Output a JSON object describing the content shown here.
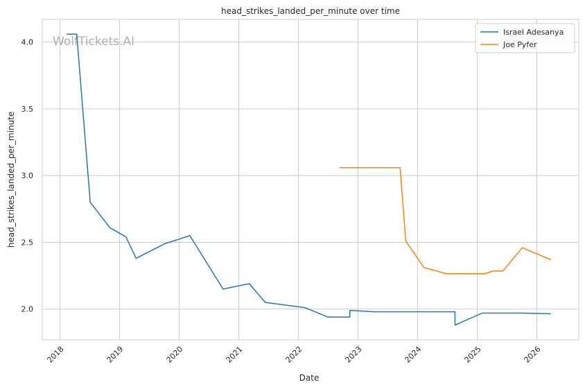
{
  "chart_data": {
    "type": "line",
    "title": "head_strikes_landed_per_minute over time",
    "xlabel": "Date",
    "ylabel": "head_strikes_landed_per_minute",
    "watermark": "WolfTickets.AI",
    "x_ticks": [
      "2018",
      "2019",
      "2020",
      "2021",
      "2022",
      "2023",
      "2024",
      "2025",
      "2026"
    ],
    "y_ticks": [
      "2.0",
      "2.5",
      "3.0",
      "3.5",
      "4.0"
    ],
    "xlim": [
      "2017-09-15",
      "2026-09-15"
    ],
    "ylim": [
      1.77,
      4.17
    ],
    "grid": true,
    "legend_position": "top-right",
    "series": [
      {
        "name": "Israel Adesanya",
        "color": "#1f77b4",
        "points": [
          [
            "2018-02-10",
            4.06
          ],
          [
            "2018-04-14",
            4.06
          ],
          [
            "2018-07-06",
            2.8
          ],
          [
            "2018-11-03",
            2.61
          ],
          [
            "2019-02-10",
            2.54
          ],
          [
            "2019-04-13",
            2.38
          ],
          [
            "2019-10-06",
            2.49
          ],
          [
            "2020-03-07",
            2.55
          ],
          [
            "2020-09-27",
            2.15
          ],
          [
            "2021-03-06",
            2.19
          ],
          [
            "2021-06-12",
            2.05
          ],
          [
            "2022-02-12",
            2.01
          ],
          [
            "2022-07-02",
            1.94
          ],
          [
            "2022-11-12",
            1.94
          ],
          [
            "2022-11-13",
            1.99
          ],
          [
            "2023-04-08",
            1.98
          ],
          [
            "2024-08-17",
            1.98
          ],
          [
            "2024-08-18",
            1.88
          ],
          [
            "2025-02-01",
            1.97
          ],
          [
            "2025-10-01",
            1.97
          ],
          [
            "2026-03-28",
            1.965
          ]
        ]
      },
      {
        "name": "Joe Pyfer",
        "color": "#ff7f0e",
        "points": [
          [
            "2022-09-10",
            3.06
          ],
          [
            "2023-09-16",
            3.06
          ],
          [
            "2023-10-21",
            2.51
          ],
          [
            "2024-02-10",
            2.31
          ],
          [
            "2024-06-29",
            2.265
          ],
          [
            "2025-02-15",
            2.265
          ],
          [
            "2025-04-05",
            2.285
          ],
          [
            "2025-06-07",
            2.285
          ],
          [
            "2025-10-04",
            2.46
          ],
          [
            "2026-03-28",
            2.37
          ]
        ]
      }
    ]
  }
}
